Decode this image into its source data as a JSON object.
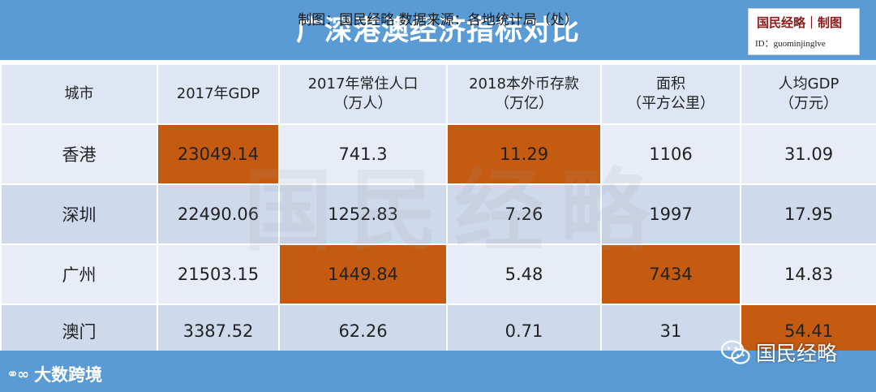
{
  "title": "广深港澳经济指标对比",
  "brand": {
    "name": "国民经略｜制图",
    "id": "ID：guominjinglve"
  },
  "table": {
    "headers": [
      {
        "line1": "城市",
        "line2": ""
      },
      {
        "line1": "2017年GDP",
        "line2": ""
      },
      {
        "line1": "2017年常住人口",
        "line2": "（万人）"
      },
      {
        "line1": "2018本外币存款",
        "line2": "（万亿）"
      },
      {
        "line1": "面积",
        "line2": "（平方公里）"
      },
      {
        "line1": "人均GDP",
        "line2": "（万元）"
      }
    ],
    "rows": [
      {
        "city": "香港",
        "gdp": "23049.14",
        "population": "741.3",
        "deposits": "11.29",
        "area": "1106",
        "gdp_per_capita": "31.09"
      },
      {
        "city": "深圳",
        "gdp": "22490.06",
        "population": "1252.83",
        "deposits": "7.26",
        "area": "1997",
        "gdp_per_capita": "17.95"
      },
      {
        "city": "广州",
        "gdp": "21503.15",
        "population": "1449.84",
        "deposits": "5.48",
        "area": "7434",
        "gdp_per_capita": "14.83"
      },
      {
        "city": "澳门",
        "gdp": "3387.52",
        "population": "62.26",
        "deposits": "0.71",
        "area": "31",
        "gdp_per_capita": "54.41"
      }
    ],
    "highlight_color": "#c55a11"
  },
  "footer": {
    "text": "制图：国民经略 数据来源：各地统计局（处）",
    "left_logo": "大数跨境",
    "wechat_label": "国民经略"
  },
  "colors": {
    "title_bar": "#5b9bd5",
    "header_row": "#dde6f2",
    "row_light": "#e7ecf6",
    "row_dark": "#cfd9ec"
  }
}
